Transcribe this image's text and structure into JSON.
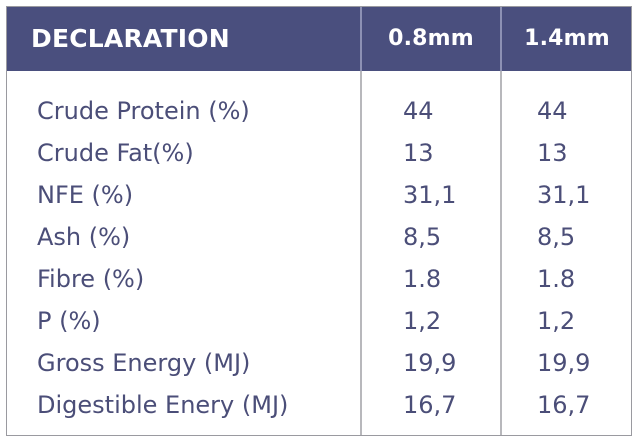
{
  "header": {
    "label": "DECLARATION",
    "col1": "0.8mm",
    "col2": "1.4mm"
  },
  "rows": [
    {
      "label": "Crude Protein (%)",
      "v1": "44",
      "v2": "44"
    },
    {
      "label": "Crude Fat(%)",
      "v1": "13",
      "v2": "13"
    },
    {
      "label": "NFE (%)",
      "v1": "31,1",
      "v2": "31,1"
    },
    {
      "label": "Ash (%)",
      "v1": "8,5",
      "v2": "8,5"
    },
    {
      "label": "Fibre (%)",
      "v1": "1.8",
      "v2": "1.8"
    },
    {
      "label": "P (%)",
      "v1": "1,2",
      "v2": "1,2"
    },
    {
      "label": "Gross Energy (MJ)",
      "v1": "19,9",
      "v2": "19,9"
    },
    {
      "label": "Digestible Enery (MJ)",
      "v1": "16,7",
      "v2": "16,7"
    }
  ],
  "colors": {
    "header_bg": "#4a4f7e",
    "header_text": "#ffffff",
    "body_text": "#4b4e78",
    "border": "#9a9aa0"
  }
}
